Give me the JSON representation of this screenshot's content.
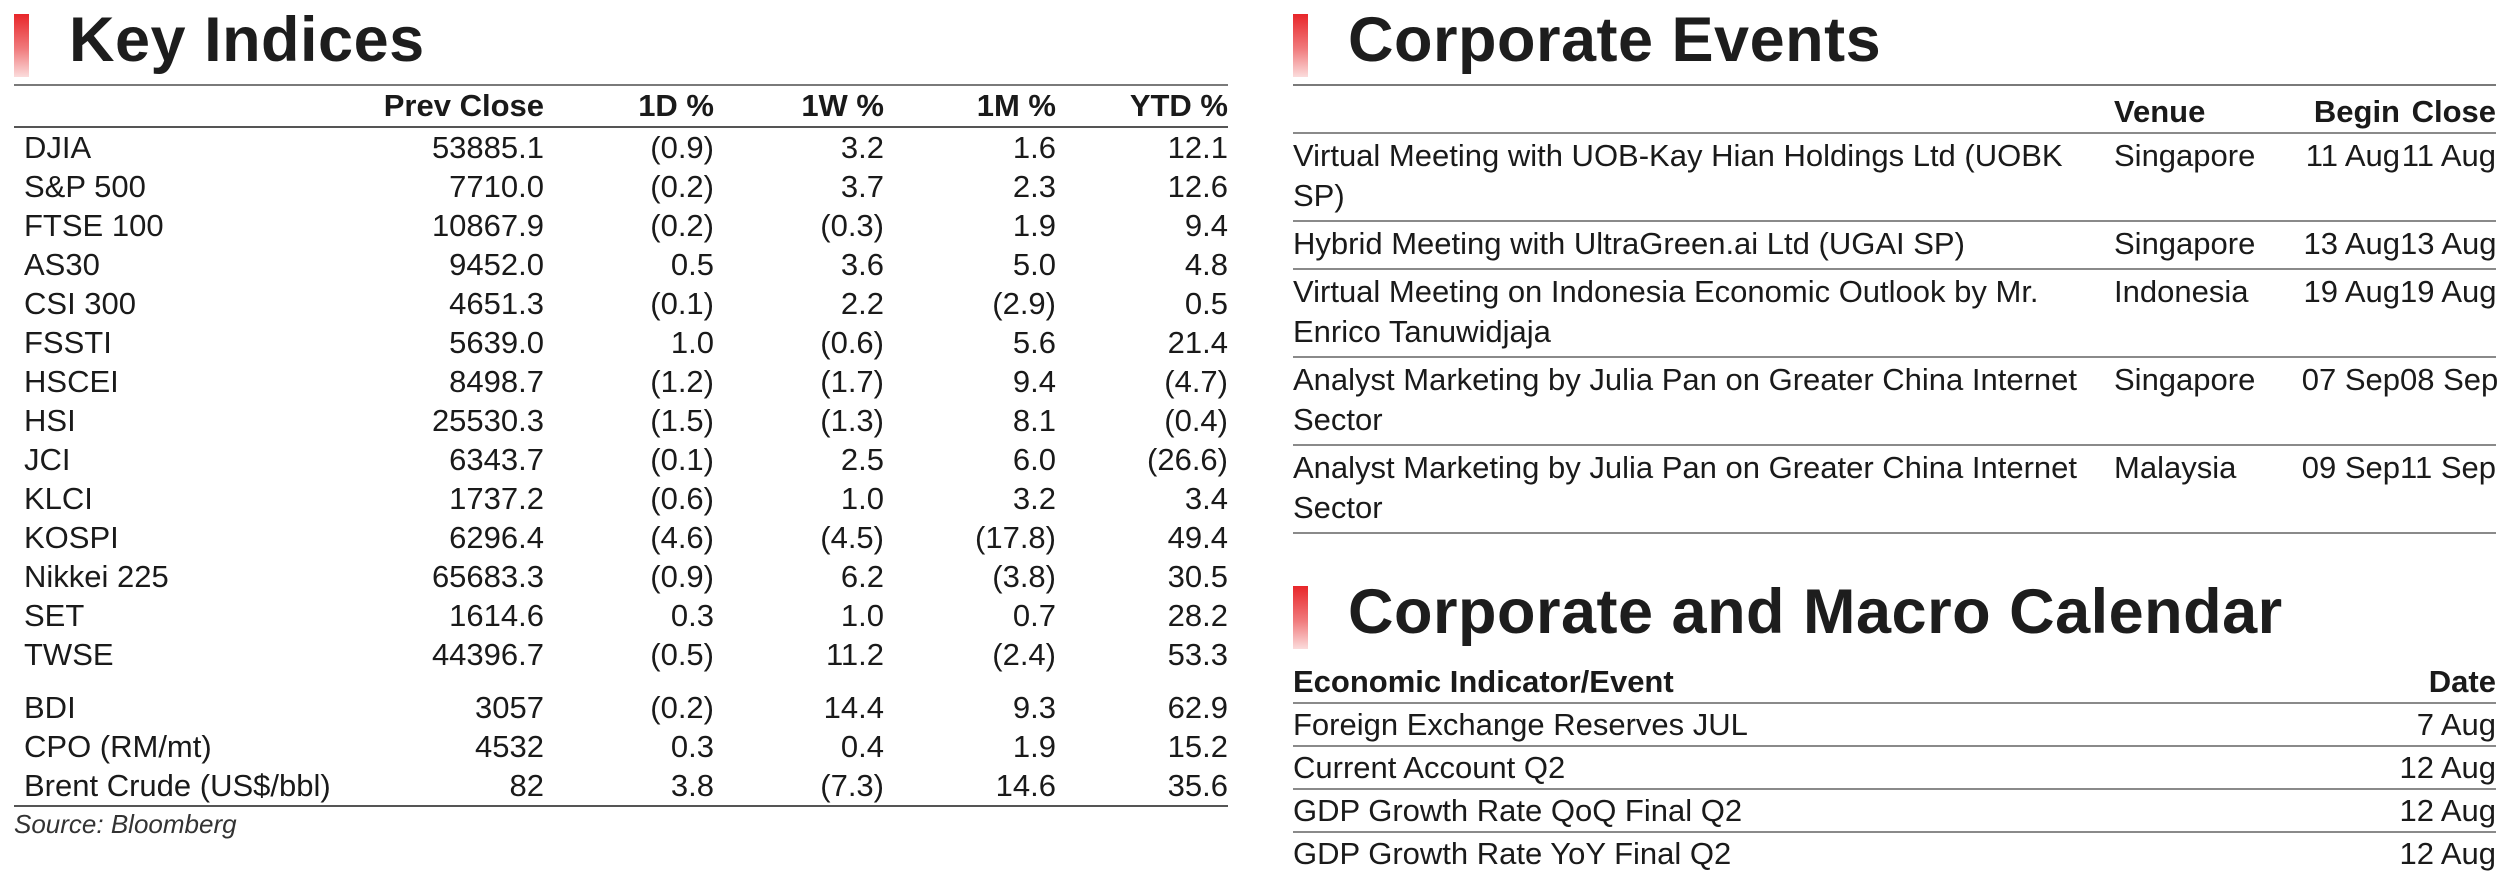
{
  "key_indices": {
    "title": "Key Indices",
    "columns": [
      "",
      "Prev Close",
      "1D %",
      "1W %",
      "1M %",
      "YTD %"
    ],
    "rows": [
      [
        "DJIA",
        "53885.1",
        "(0.9)",
        "3.2",
        "1.6",
        "12.1"
      ],
      [
        "S&P 500",
        "7710.0",
        "(0.2)",
        "3.7",
        "2.3",
        "12.6"
      ],
      [
        "FTSE 100",
        "10867.9",
        "(0.2)",
        "(0.3)",
        "1.9",
        "9.4"
      ],
      [
        "AS30",
        "9452.0",
        "0.5",
        "3.6",
        "5.0",
        "4.8"
      ],
      [
        "CSI 300",
        "4651.3",
        "(0.1)",
        "2.2",
        "(2.9)",
        "0.5"
      ],
      [
        "FSSTI",
        "5639.0",
        "1.0",
        "(0.6)",
        "5.6",
        "21.4"
      ],
      [
        "HSCEI",
        "8498.7",
        "(1.2)",
        "(1.7)",
        "9.4",
        "(4.7)"
      ],
      [
        "HSI",
        "25530.3",
        "(1.5)",
        "(1.3)",
        "8.1",
        "(0.4)"
      ],
      [
        "JCI",
        "6343.7",
        "(0.1)",
        "2.5",
        "6.0",
        "(26.6)"
      ],
      [
        "KLCI",
        "1737.2",
        "(0.6)",
        "1.0",
        "3.2",
        "3.4"
      ],
      [
        "KOSPI",
        "6296.4",
        "(4.6)",
        "(4.5)",
        "(17.8)",
        "49.4"
      ],
      [
        "Nikkei 225",
        "65683.3",
        "(0.9)",
        "6.2",
        "(3.8)",
        "30.5"
      ],
      [
        "SET",
        "1614.6",
        "0.3",
        "1.0",
        "0.7",
        "28.2"
      ],
      [
        "TWSE",
        "44396.7",
        "(0.5)",
        "11.2",
        "(2.4)",
        "53.3"
      ]
    ],
    "commodity_rows": [
      [
        "BDI",
        "3057",
        "(0.2)",
        "14.4",
        "9.3",
        "62.9"
      ],
      [
        "CPO (RM/mt)",
        "4532",
        "0.3",
        "0.4",
        "1.9",
        "15.2"
      ],
      [
        "Brent Crude (US$/bbl)",
        "82",
        "3.8",
        "(7.3)",
        "14.6",
        "35.6"
      ]
    ],
    "source": "Source: Bloomberg"
  },
  "corporate_events": {
    "title": "Corporate Events",
    "columns": [
      "",
      "Venue",
      "Begin",
      "Close"
    ],
    "rows": [
      [
        "Virtual Meeting with UOB-Kay Hian Holdings Ltd (UOBK SP)",
        "Singapore",
        "11 Aug",
        "11 Aug"
      ],
      [
        "Hybrid Meeting with UltraGreen.ai Ltd (UGAI SP)",
        "Singapore",
        "13 Aug",
        "13 Aug"
      ],
      [
        "Virtual Meeting on Indonesia Economic Outlook by Mr. Enrico Tanuwidjaja",
        "Indonesia",
        "19 Aug",
        "19 Aug"
      ],
      [
        "Analyst Marketing by Julia Pan on Greater China Internet Sector",
        "Singapore",
        "07 Sep",
        "08 Sep"
      ],
      [
        "Analyst Marketing by Julia Pan on Greater China Internet Sector",
        "Malaysia",
        "09 Sep",
        "11 Sep"
      ]
    ]
  },
  "calendar": {
    "title": "Corporate and Macro Calendar",
    "columns": [
      "Economic Indicator/Event",
      "Date"
    ],
    "rows": [
      [
        "Foreign Exchange Reserves JUL",
        "7 Aug"
      ],
      [
        "Current Account Q2",
        "12 Aug"
      ],
      [
        "GDP Growth Rate QoQ Final Q2",
        "12 Aug"
      ],
      [
        "GDP Growth Rate YoY Final Q2",
        "12 Aug"
      ]
    ]
  },
  "colors": {
    "accent_red": "#e8262a",
    "rule_gray": "#8a8a8a"
  }
}
